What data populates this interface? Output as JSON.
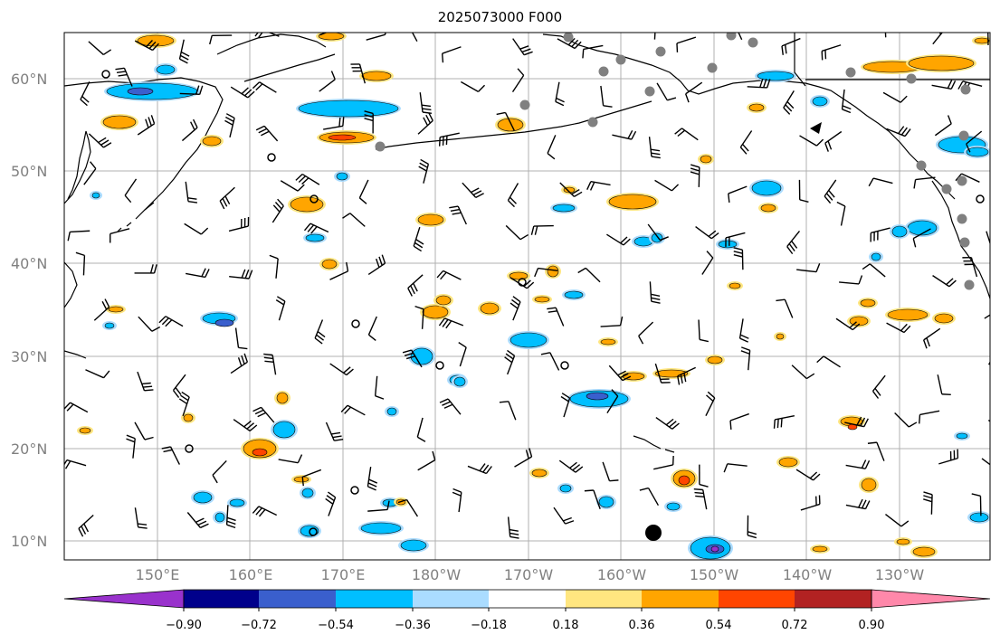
{
  "title": "2025073000 F000",
  "map": {
    "lat_labels": [
      "60°N",
      "50°N",
      "40°N",
      "30°N",
      "20°N",
      "10°N"
    ],
    "lon_labels": [
      "150°E",
      "160°E",
      "170°E",
      "180°W",
      "170°W",
      "160°W",
      "150°W",
      "140°W",
      "130°W"
    ]
  },
  "colorbar": {
    "tick_labels": [
      "−0.90",
      "−0.72",
      "−0.54",
      "−0.36",
      "−0.18",
      "0.18",
      "0.36",
      "0.54",
      "0.72",
      "0.90"
    ],
    "colors": [
      "#9932cc",
      "#00008b",
      "#3a5fcd",
      "#00bfff",
      "#aadcff",
      "#ffffff",
      "#ffe680",
      "#ffa500",
      "#ff4500",
      "#b22222",
      "#ff88aa"
    ]
  },
  "colors": {
    "land_outline": "#000000",
    "grid": "#b0b0b0",
    "station_marker": "#808080"
  }
}
